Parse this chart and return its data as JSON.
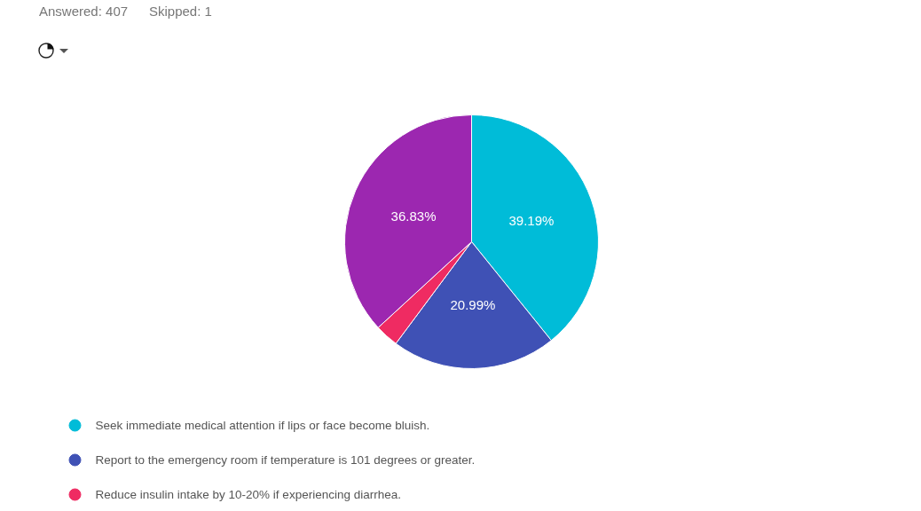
{
  "chart_data": {
    "type": "pie",
    "categories": [
      "Seek immediate medical attention if lips or face become bluish.",
      "Report to the emergency room if temperature is 101 degrees or greater.",
      "Reduce insulin intake by 10-20% if experiencing diarrhea.",
      null
    ],
    "values": [
      39.19,
      20.99,
      2.99,
      36.83
    ],
    "colors": [
      "#00bcd8",
      "#3f51b5",
      "#ef2b62",
      "#9c27b0"
    ],
    "value_labels": [
      "39.19%",
      "20.99%",
      null,
      "36.83%"
    ],
    "legend": "bottom",
    "annotations": [
      "Answered: 407",
      "Skipped: 1"
    ]
  }
}
